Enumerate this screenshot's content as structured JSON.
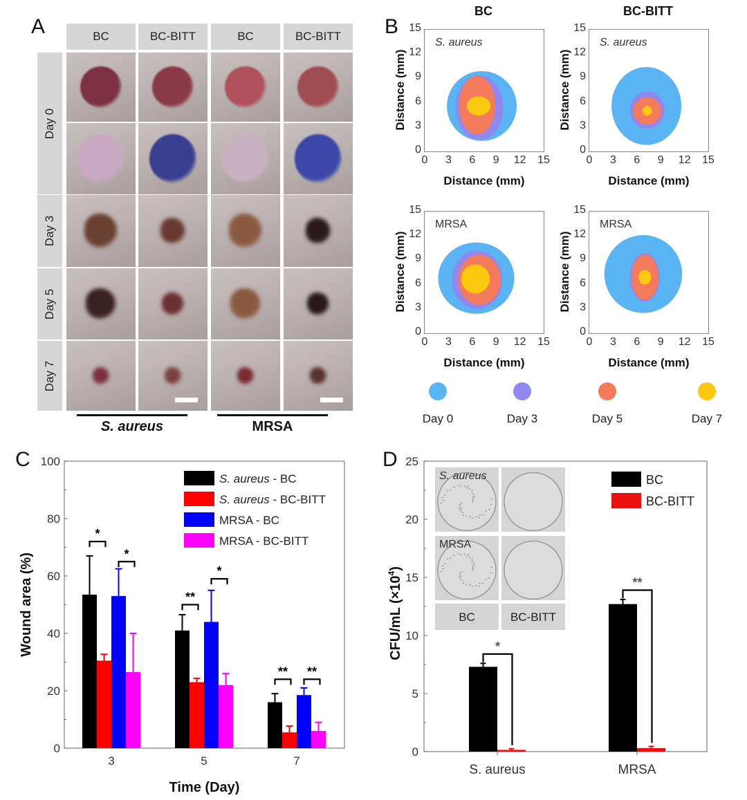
{
  "figure": {
    "panel_letters": [
      "A",
      "B",
      "C",
      "D"
    ]
  },
  "panelA": {
    "column_headers": [
      "BC",
      "BC-BITT",
      "BC",
      "BC-BITT"
    ],
    "row_labels": [
      "Day 0",
      "Day 3",
      "Day 5",
      "Day 7"
    ],
    "groups": [
      {
        "label": "S. aureus",
        "italic": true
      },
      {
        "label": "MRSA",
        "italic": false
      }
    ],
    "photo_tints": {
      "day0_top": [
        "#7a3040",
        "#8a3848",
        "#b0505a",
        "#a04c50"
      ],
      "day0_bottom": [
        "#c8a8c0",
        "#3a3e90",
        "#c8b0c0",
        "#3c48a8"
      ],
      "day3": [
        "#6a4030",
        "#6a3a30",
        "#8a5a40",
        "#2a1a1a"
      ],
      "day5": [
        "#3a2020",
        "#6a3030",
        "#8a5a40",
        "#2a1818"
      ],
      "day7": [
        "#7a3040",
        "#7a4040",
        "#7a2a30",
        "#5a3030"
      ]
    },
    "skin_color": "#b8aeae"
  },
  "panelB": {
    "column_titles": [
      "BC",
      "BC-BITT"
    ],
    "maps": [
      {
        "label": "S. aureus",
        "italic": true
      },
      {
        "label": "S. aureus",
        "italic": true
      },
      {
        "label": "MRSA",
        "italic": false
      },
      {
        "label": "MRSA",
        "italic": false
      }
    ],
    "ticks": [
      "0",
      "3",
      "6",
      "9",
      "12",
      "15"
    ],
    "xlabel": "Distance (mm)",
    "ylabel": "Distance (mm)",
    "legend": [
      {
        "label": "Day 0",
        "color": "#5ab4f4"
      },
      {
        "label": "Day 3",
        "color": "#8e88f0"
      },
      {
        "label": "Day 5",
        "color": "#f47a5c"
      },
      {
        "label": "Day 7",
        "color": "#fcc810"
      }
    ]
  },
  "chart_data": [
    {
      "type": "bar",
      "panel": "C",
      "title": "",
      "xlabel": "Time (Day)",
      "ylabel": "Wound area (%)",
      "categories": [
        "3",
        "5",
        "7"
      ],
      "ylim": [
        0,
        100
      ],
      "yticks": [
        "0",
        "20",
        "40",
        "60",
        "80",
        "100"
      ],
      "grid": false,
      "legend_position": "top-right",
      "series": [
        {
          "name": "S. aureus - BC",
          "name_italic_part": "S. aureus",
          "name_rest": " - BC",
          "color": "#000000",
          "values": [
            53.5,
            41,
            16
          ],
          "errors": [
            13.5,
            5.5,
            3
          ]
        },
        {
          "name": "S. aureus - BC-BITT",
          "name_italic_part": "S. aureus",
          "name_rest": " - BC-BITT",
          "color": "#ff0000",
          "values": [
            30.5,
            23,
            5.5
          ],
          "errors": [
            2.2,
            1.3,
            2.2
          ]
        },
        {
          "name": "MRSA - BC",
          "name_italic_part": "",
          "name_rest": "MRSA - BC",
          "color": "#0000ff",
          "values": [
            53,
            44,
            18.5
          ],
          "errors": [
            9.5,
            11,
            2.5
          ]
        },
        {
          "name": "MRSA - BC-BITT",
          "name_italic_part": "",
          "name_rest": "MRSA - BC-BITT",
          "color": "#ff00ff",
          "values": [
            26.5,
            22,
            6
          ],
          "errors": [
            13.5,
            4,
            3
          ]
        }
      ],
      "significance": [
        {
          "category": "3",
          "pair": [
            0,
            1
          ],
          "label": "*",
          "y": 72
        },
        {
          "category": "3",
          "pair": [
            2,
            3
          ],
          "label": "*",
          "y": 65
        },
        {
          "category": "5",
          "pair": [
            0,
            1
          ],
          "label": "**",
          "y": 50
        },
        {
          "category": "5",
          "pair": [
            2,
            3
          ],
          "label": "*",
          "y": 59
        },
        {
          "category": "7",
          "pair": [
            0,
            1
          ],
          "label": "**",
          "y": 24
        },
        {
          "category": "7",
          "pair": [
            2,
            3
          ],
          "label": "**",
          "y": 24
        }
      ]
    },
    {
      "type": "bar",
      "panel": "D",
      "title": "",
      "xlabel": "",
      "ylabel": "CFU/mL (×10⁴)",
      "ylabel_main": "CFU/mL (×10",
      "ylabel_sup": "4",
      "ylabel_end": ")",
      "categories": [
        "S. aureus",
        "MRSA"
      ],
      "ylim": [
        0,
        25
      ],
      "yticks": [
        "0",
        "5",
        "10",
        "15",
        "20",
        "25"
      ],
      "grid": false,
      "legend_position": "top-right",
      "series": [
        {
          "name": "BC",
          "color": "#000000",
          "values": [
            7.3,
            12.7
          ],
          "errors": [
            0.3,
            0.4
          ]
        },
        {
          "name": "BC-BITT",
          "color": "#e81010",
          "values": [
            0.15,
            0.3
          ],
          "errors": [
            0.1,
            0.15
          ]
        }
      ],
      "significance": [
        {
          "category": "S. aureus",
          "label": "*",
          "y": 8.4
        },
        {
          "category": "MRSA",
          "label": "**",
          "y": 13.9
        }
      ],
      "inset": {
        "row_labels": [
          "S. aureus",
          "MRSA"
        ],
        "row_label_italic": [
          true,
          false
        ],
        "column_labels": [
          "BC",
          "BC-BITT"
        ]
      }
    }
  ]
}
